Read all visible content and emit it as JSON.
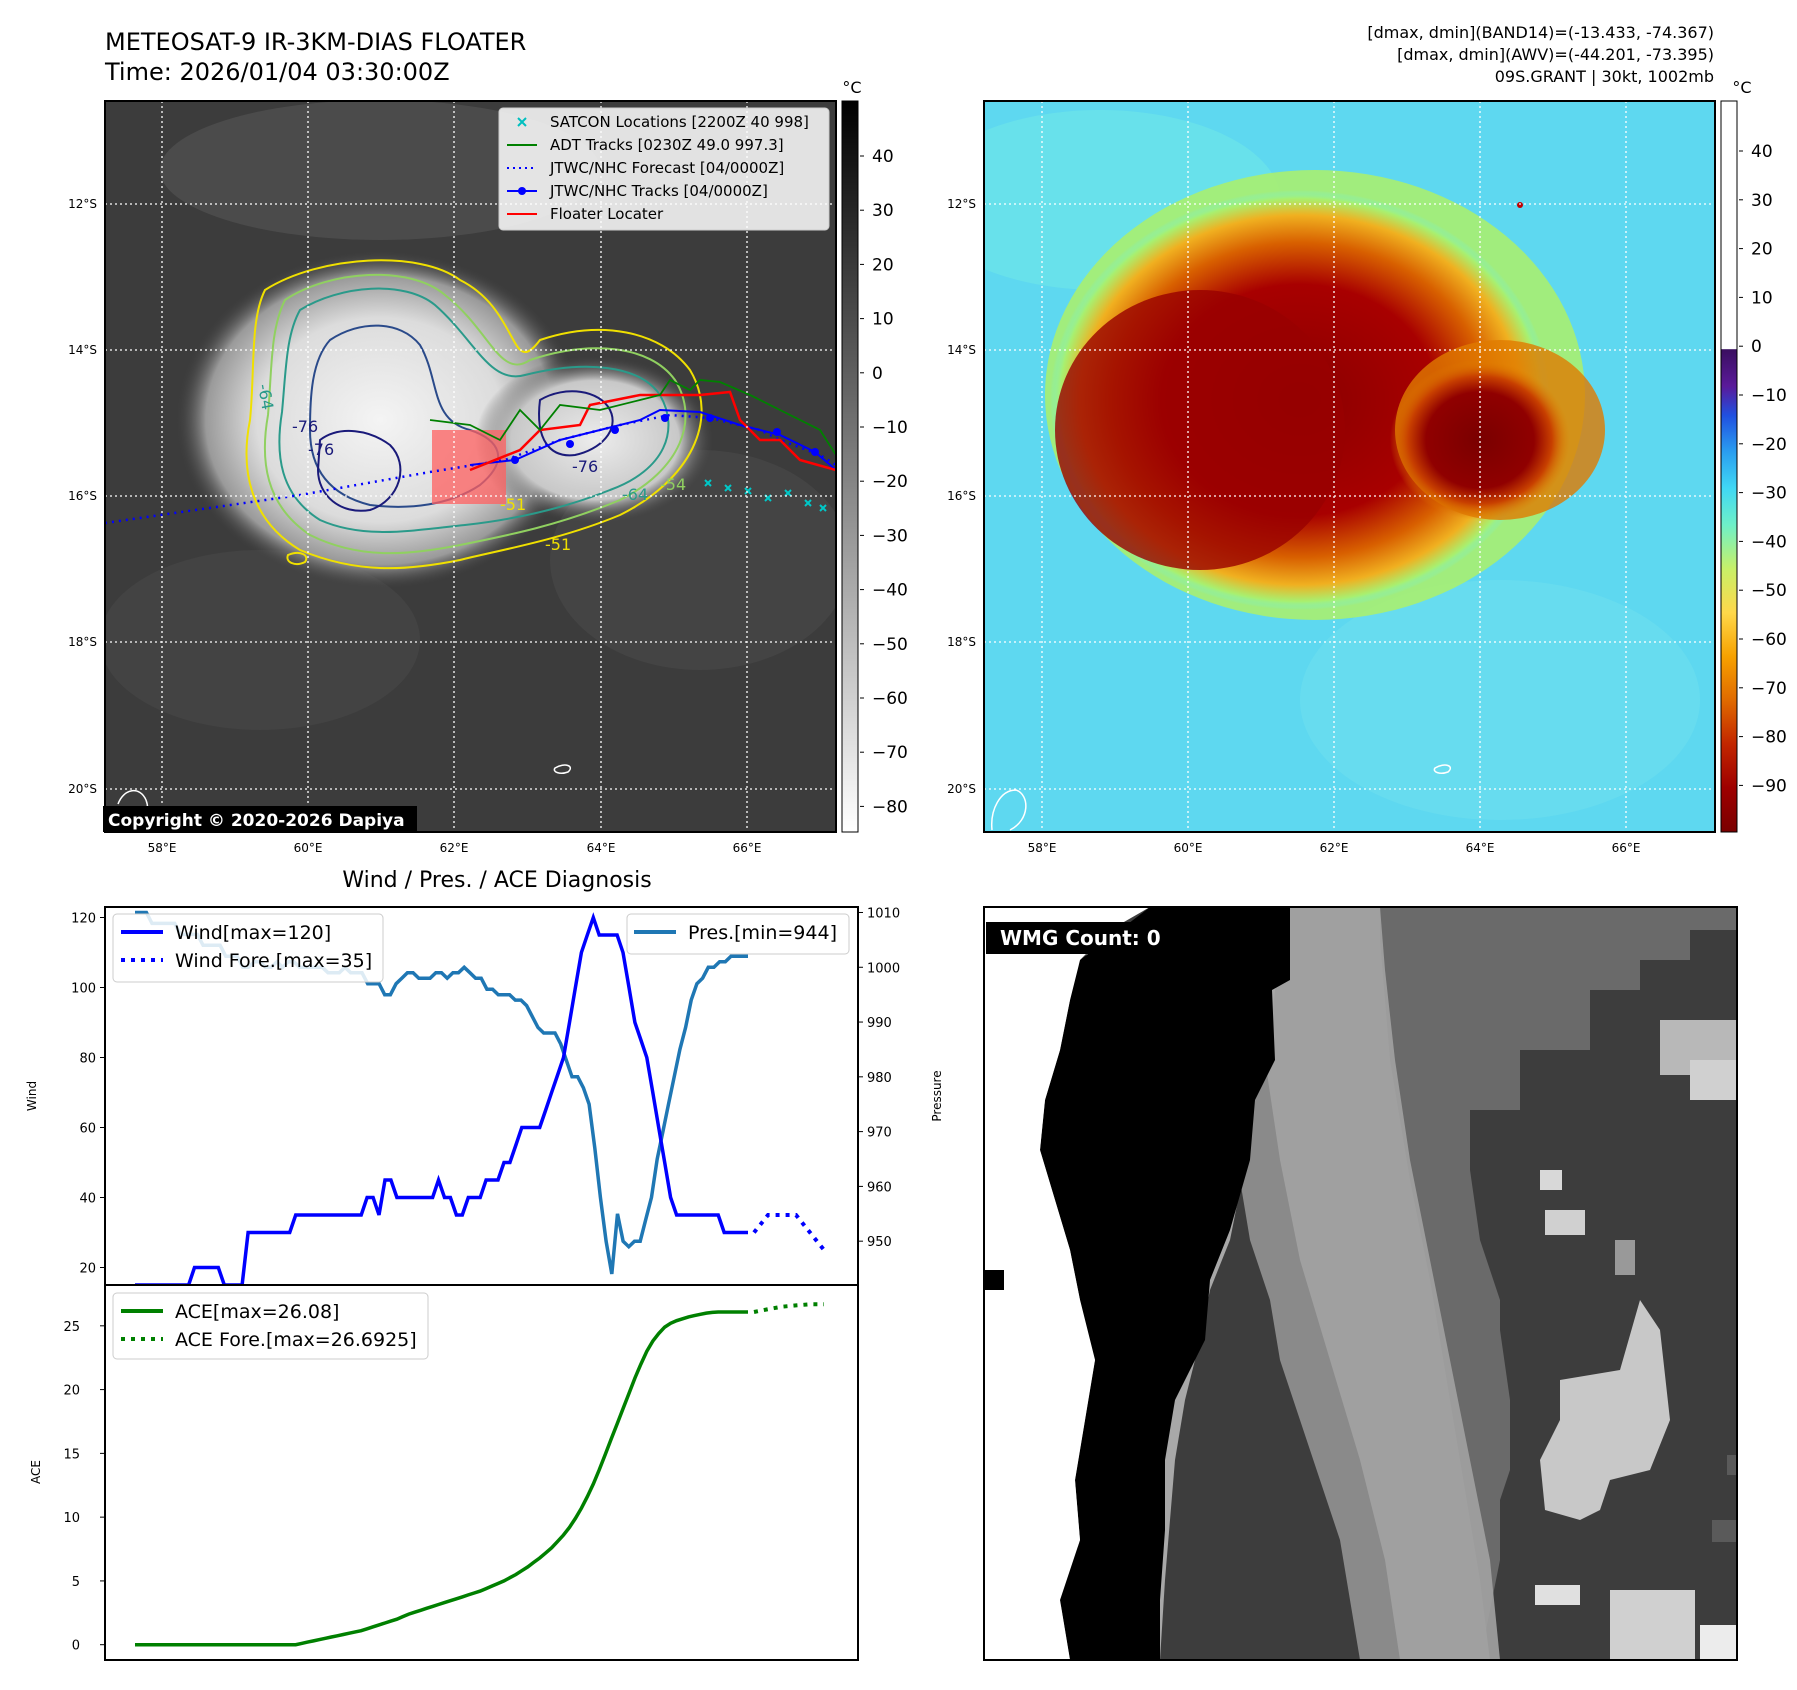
{
  "header": {
    "title": "METEOSAT-9 IR-3KM-DIAS FLOATER",
    "time": "Time: 2026/01/04 03:30:00Z",
    "dmax_band14": "[dmax, dmin](BAND14)=(-13.433, -74.367)",
    "dmax_awv": "[dmax, dmin](AWV)=(-44.201, -73.395)",
    "storm": "09S.GRANT | 30kt, 1002mb"
  },
  "ir_panel": {
    "lat_labels": [
      "12°S",
      "14°S",
      "16°S",
      "18°S",
      "20°S"
    ],
    "lon_labels": [
      "58°E",
      "60°E",
      "62°E",
      "64°E",
      "66°E"
    ],
    "copyright": "Copyright © 2020-2026 Dapiya",
    "contour_labels": [
      "-64",
      "-76",
      "-76",
      "-51",
      "-51",
      "-64",
      "-54",
      "-76"
    ],
    "legend": [
      {
        "label": "SATCON Locations [2200Z 40 998]",
        "color": "#00bfbf",
        "style": "x"
      },
      {
        "label": "ADT Tracks [0230Z 49.0 997.3]",
        "color": "#008000",
        "style": "line"
      },
      {
        "label": "JTWC/NHC Forecast [04/0000Z]",
        "color": "#0000ff",
        "style": "dot"
      },
      {
        "label": "JTWC/NHC Tracks [04/0000Z]",
        "color": "#0000ff",
        "style": "line-marker"
      },
      {
        "label": "Floater Locater",
        "color": "#ff0000",
        "style": "line"
      }
    ]
  },
  "colorbar_gray": {
    "unit": "°C",
    "ticks": [
      "40",
      "30",
      "20",
      "10",
      "0",
      "−10",
      "−20",
      "−30",
      "−40",
      "−50",
      "−60",
      "−70",
      "−80"
    ]
  },
  "colorbar_color": {
    "unit": "°C",
    "ticks": [
      "40",
      "30",
      "20",
      "10",
      "0",
      "−10",
      "−20",
      "−30",
      "−40",
      "−50",
      "−60",
      "−70",
      "−80",
      "−90"
    ]
  },
  "awv_panel": {
    "lat_labels": [
      "12°S",
      "14°S",
      "16°S",
      "18°S",
      "20°S"
    ],
    "lon_labels": [
      "58°E",
      "60°E",
      "62°E",
      "64°E",
      "66°E"
    ]
  },
  "diag_title": "Wind / Pres. / ACE Diagnosis",
  "wmg_label": "WMG Count: 0",
  "chart_data": [
    {
      "type": "line",
      "title": "Wind / Pres. / ACE Diagnosis",
      "ylabel": "Wind",
      "ylabel_right": "Pressure",
      "ylim": [
        15,
        123
      ],
      "ylim_right": [
        942,
        1011
      ],
      "y_ticks": [
        20,
        40,
        60,
        80,
        100,
        120
      ],
      "y_ticks_right": [
        950,
        960,
        970,
        980,
        990,
        1000,
        1010
      ],
      "series": [
        {
          "name": "Wind[max=120]",
          "color": "#0000ff",
          "values": [
            15,
            15,
            15,
            15,
            15,
            15,
            15,
            15,
            15,
            15,
            20,
            20,
            20,
            20,
            20,
            15,
            15,
            15,
            15,
            30,
            30,
            30,
            30,
            30,
            30,
            30,
            30,
            35,
            35,
            35,
            35,
            35,
            35,
            35,
            35,
            35,
            35,
            35,
            35,
            40,
            40,
            35,
            45,
            45,
            40,
            40,
            40,
            40,
            40,
            40,
            40,
            45,
            40,
            40,
            35,
            35,
            40,
            40,
            40,
            45,
            45,
            45,
            50,
            50,
            55,
            60,
            60,
            60,
            60,
            65,
            70,
            75,
            80,
            90,
            100,
            110,
            115,
            120,
            115,
            115,
            115,
            115,
            110,
            100,
            90,
            85,
            80,
            70,
            60,
            50,
            40,
            35,
            35,
            35,
            35,
            35,
            35,
            35,
            35,
            30,
            30,
            30,
            30,
            30
          ]
        },
        {
          "name": "Wind Fore.[max=35]",
          "color": "#0000ff",
          "dashed": true,
          "values": [
            30,
            35,
            35,
            35,
            30,
            25
          ]
        },
        {
          "name": "Pres.[min=944]",
          "color": "#1f77b4",
          "axis": "right",
          "values": [
            1010,
            1010,
            1010,
            1008,
            1008,
            1008,
            1008,
            1008,
            1006,
            1006,
            1006,
            1006,
            1004,
            1004,
            1004,
            1004,
            1002,
            1002,
            1002,
            1000,
            1000,
            1001,
            1001,
            1000,
            1000,
            1001,
            1000,
            1001,
            1001,
            1000,
            1000,
            1000,
            1000,
            1000,
            999,
            999,
            999,
            1000,
            999,
            999,
            999,
            997,
            997,
            997,
            995,
            995,
            997,
            998,
            999,
            999,
            998,
            998,
            998,
            999,
            999,
            998,
            999,
            999,
            1000,
            999,
            998,
            998,
            996,
            996,
            995,
            995,
            995,
            994,
            994,
            993,
            991,
            989,
            988,
            988,
            988,
            986,
            983,
            980,
            980,
            978,
            975,
            967,
            958,
            950,
            944,
            955,
            950,
            949,
            950,
            950,
            954,
            958,
            965,
            970,
            975,
            980,
            985,
            989,
            994,
            997,
            998,
            1000,
            1000,
            1001,
            1001,
            1002,
            1002,
            1002,
            1002
          ]
        }
      ]
    },
    {
      "type": "line",
      "ylabel": "ACE",
      "ylim": [
        -1.2,
        28.2
      ],
      "y_ticks": [
        0,
        5,
        10,
        15,
        20,
        25
      ],
      "series": [
        {
          "name": "ACE[max=26.08]",
          "color": "#008000",
          "values": [
            0,
            0,
            0,
            0,
            0,
            0,
            0,
            0,
            0,
            0,
            0,
            0,
            0,
            0,
            0,
            0,
            0,
            0,
            0,
            0,
            0,
            0,
            0,
            0,
            0,
            0,
            0,
            0,
            0.1,
            0.2,
            0.3,
            0.4,
            0.5,
            0.6,
            0.7,
            0.8,
            0.9,
            1.0,
            1.1,
            1.25,
            1.4,
            1.55,
            1.7,
            1.85,
            2.0,
            2.2,
            2.4,
            2.55,
            2.7,
            2.85,
            3.0,
            3.15,
            3.3,
            3.45,
            3.6,
            3.75,
            3.9,
            4.05,
            4.2,
            4.4,
            4.6,
            4.8,
            5.0,
            5.25,
            5.5,
            5.8,
            6.1,
            6.45,
            6.8,
            7.2,
            7.6,
            8.1,
            8.6,
            9.2,
            9.9,
            10.7,
            11.6,
            12.6,
            13.7,
            14.9,
            16.1,
            17.3,
            18.5,
            19.7,
            20.9,
            22.0,
            23.0,
            23.8,
            24.4,
            24.9,
            25.2,
            25.4,
            25.55,
            25.7,
            25.8,
            25.9,
            26.0,
            26.05,
            26.08,
            26.08,
            26.08,
            26.08,
            26.08,
            26.08
          ]
        },
        {
          "name": "ACE Fore.[max=26.6925]",
          "color": "#008000",
          "dashed": true,
          "values": [
            26.08,
            26.3,
            26.5,
            26.6,
            26.69,
            26.69
          ]
        }
      ]
    },
    {
      "type": "heatmap",
      "title": "METEOSAT-9 IR-3KM-DIAS FLOATER",
      "colorbar": {
        "unit": "°C",
        "range": [
          -85,
          49
        ]
      },
      "x_ticks": [
        "58°E",
        "60°E",
        "62°E",
        "64°E",
        "66°E"
      ],
      "y_ticks": [
        "12°S",
        "14°S",
        "16°S",
        "18°S",
        "20°S"
      ]
    },
    {
      "type": "heatmap",
      "colorbar": {
        "unit": "°C",
        "range": [
          -100,
          49
        ]
      },
      "x_ticks": [
        "58°E",
        "60°E",
        "62°E",
        "64°E",
        "66°E"
      ],
      "y_ticks": [
        "12°S",
        "14°S",
        "16°S",
        "18°S",
        "20°S"
      ]
    }
  ],
  "theme": {
    "wind": "#0000ff",
    "pressure": "#1f77b4",
    "ace": "#008000",
    "floater": "#ff0000",
    "satcon": "#00bfbf"
  }
}
